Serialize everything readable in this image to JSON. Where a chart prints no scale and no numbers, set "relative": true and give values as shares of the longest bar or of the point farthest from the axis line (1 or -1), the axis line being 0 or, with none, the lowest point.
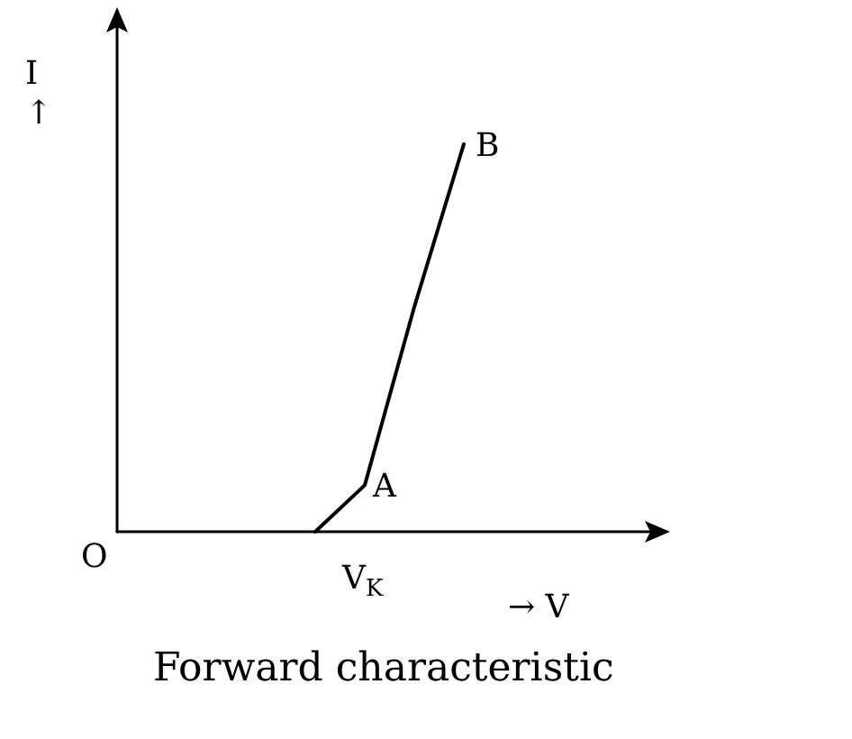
{
  "chart_data": {
    "type": "line",
    "relative": true,
    "title": "Forward characteristic",
    "xlabel": "→ V",
    "ylabel": "I ↑",
    "categories": [
      null,
      null,
      null,
      null,
      null,
      null,
      null,
      null,
      null,
      null,
      null,
      null
    ],
    "series": [
      {
        "color": "#000000",
        "values": [
          null,
          null,
          null,
          null,
          0,
          0.12,
          0.58,
          1,
          null,
          null,
          null,
          null
        ]
      }
    ],
    "annotations": [
      "O",
      "V$_{K}$",
      "A",
      "B"
    ],
    "marker": "none",
    "line_style": "solid"
  }
}
